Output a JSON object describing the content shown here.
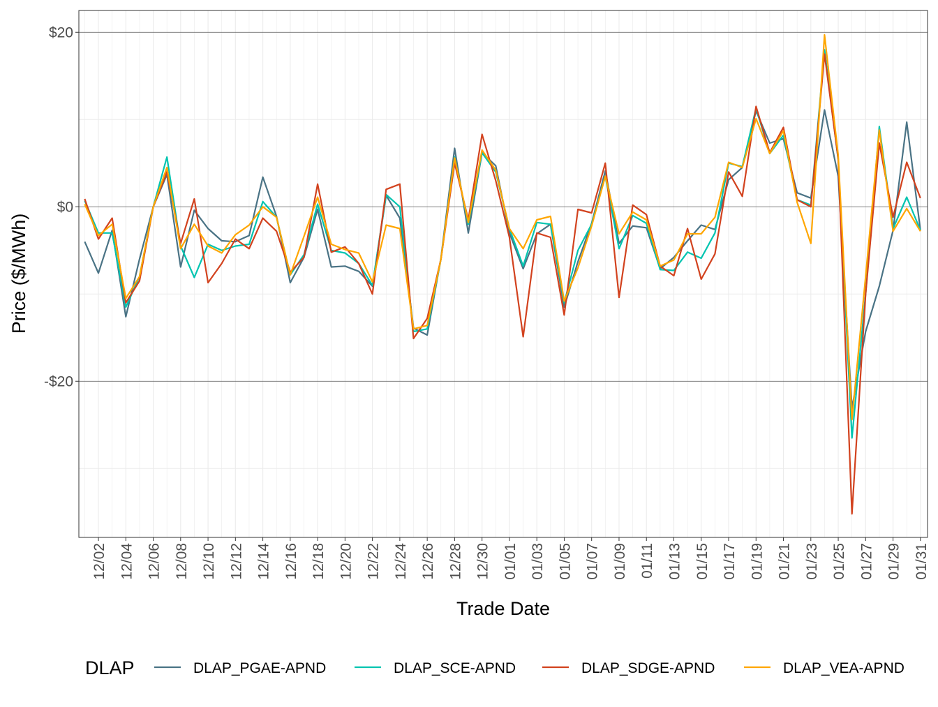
{
  "chart_data": {
    "type": "line",
    "xlabel": "Trade Date",
    "ylabel": "Price ($/MWh)",
    "ylim": [
      -37.9,
      22.5
    ],
    "y_ticks": [
      20,
      0,
      -20
    ],
    "y_tick_labels": [
      "$20",
      "$0",
      "-$20"
    ],
    "grid": true,
    "legend": {
      "title": "DLAP",
      "position": "bottom"
    },
    "x": [
      "12/01",
      "12/02",
      "12/03",
      "12/04",
      "12/05",
      "12/06",
      "12/07",
      "12/08",
      "12/09",
      "12/10",
      "12/11",
      "12/12",
      "12/13",
      "12/14",
      "12/15",
      "12/16",
      "12/17",
      "12/18",
      "12/19",
      "12/20",
      "12/21",
      "12/22",
      "12/23",
      "12/24",
      "12/25",
      "12/26",
      "12/27",
      "12/28",
      "12/29",
      "12/30",
      "12/31",
      "01/01",
      "01/02",
      "01/03",
      "01/04",
      "01/05",
      "01/06",
      "01/07",
      "01/08",
      "01/09",
      "01/10",
      "01/11",
      "01/12",
      "01/13",
      "01/14",
      "01/15",
      "01/16",
      "01/17",
      "01/18",
      "01/19",
      "01/20",
      "01/21",
      "01/22",
      "01/23",
      "01/24",
      "01/25",
      "01/26",
      "01/27",
      "01/28",
      "01/29",
      "01/30",
      "01/31"
    ],
    "x_tick_labels": [
      "12/02",
      "12/04",
      "12/06",
      "12/08",
      "12/10",
      "12/12",
      "12/14",
      "12/16",
      "12/18",
      "12/20",
      "12/22",
      "12/24",
      "12/26",
      "12/28",
      "12/30",
      "01/01",
      "01/03",
      "01/05",
      "01/07",
      "01/09",
      "01/11",
      "01/13",
      "01/15",
      "01/17",
      "01/19",
      "01/21",
      "01/23",
      "01/25",
      "01/27",
      "01/29",
      "01/31"
    ],
    "series": [
      {
        "name": "DLAP_PGAE-APND",
        "color": "#4a7385",
        "values": [
          -4.0,
          -7.6,
          -2.7,
          -12.6,
          -6.0,
          0,
          3.7,
          -6.9,
          -0.4,
          -2.5,
          -3.9,
          -4.0,
          -3.3,
          3.4,
          -1.1,
          -8.7,
          -5.8,
          -0.3,
          -6.9,
          -6.8,
          -7.4,
          -9.1,
          1.3,
          -1.3,
          -13.9,
          -14.7,
          -5.9,
          6.7,
          -3.0,
          6.2,
          4.7,
          -3.0,
          -7.1,
          -3.1,
          -2.0,
          -11.5,
          -6.3,
          -1.9,
          4.1,
          -4.2,
          -2.2,
          -2.4,
          -7.1,
          -5.8,
          -3.9,
          -2.1,
          -2.6,
          3.1,
          4.5,
          11.0,
          7.3,
          7.8,
          1.6,
          1.0,
          11.1,
          3.5,
          -23.1,
          -14.3,
          -9.1,
          -2.7,
          9.7,
          -2.7
        ]
      },
      {
        "name": "DLAP_SCE-APND",
        "color": "#00c4b0",
        "values": [
          0.7,
          -3.0,
          -3.0,
          -11.5,
          -8.0,
          0,
          5.7,
          -4.5,
          -8.1,
          -4.3,
          -5.0,
          -4.5,
          -4.3,
          0.6,
          -1.2,
          -7.8,
          -5.5,
          0.3,
          -5.0,
          -5.3,
          -6.5,
          -9.0,
          1.4,
          0,
          -14.3,
          -14.0,
          -6.0,
          5.7,
          -2.0,
          6.2,
          4.0,
          -2.5,
          -6.8,
          -1.8,
          -2.0,
          -11.0,
          -5.0,
          -2.0,
          3.5,
          -4.8,
          -1.0,
          -1.9,
          -7.2,
          -7.3,
          -5.2,
          -5.9,
          -3.0,
          5.0,
          4.6,
          11.3,
          6.1,
          8.2,
          0.8,
          0.2,
          18.0,
          5.4,
          -26.5,
          -10.0,
          9.2,
          -2.5,
          1.1,
          -2.7
        ]
      },
      {
        "name": "DLAP_SDGE-APND",
        "color": "#d2421e",
        "values": [
          0.9,
          -3.7,
          -1.3,
          -11.0,
          -8.5,
          0,
          4.0,
          -4.2,
          0.9,
          -8.7,
          -6.5,
          -3.7,
          -4.8,
          -1.3,
          -2.8,
          -7.5,
          -5.8,
          2.6,
          -5.2,
          -4.6,
          -6.5,
          -10.0,
          2.0,
          2.6,
          -15.1,
          -12.8,
          -6.0,
          5.0,
          -1.5,
          8.3,
          3.0,
          -3.5,
          -14.9,
          -3.0,
          -3.5,
          -12.4,
          -0.3,
          -0.7,
          5.0,
          -10.4,
          0.2,
          -0.9,
          -6.8,
          -7.9,
          -2.5,
          -8.3,
          -5.4,
          4.0,
          1.2,
          11.5,
          6.2,
          9.1,
          0.8,
          0,
          17.5,
          5.5,
          -35.2,
          -10.0,
          7.3,
          -1.2,
          5.1,
          1.0
        ]
      },
      {
        "name": "DLAP_VEA-APND",
        "color": "#ffa600",
        "values": [
          0.3,
          -3.3,
          -2.0,
          -10.5,
          -8.0,
          0,
          4.5,
          -4.8,
          -2.0,
          -4.5,
          -5.3,
          -3.2,
          -2.1,
          0,
          -1.2,
          -7.8,
          -3.4,
          1.1,
          -4.3,
          -4.9,
          -5.3,
          -8.6,
          -2.1,
          -2.5,
          -14.0,
          -13.6,
          -6.0,
          5.6,
          -1.8,
          6.5,
          4.2,
          -2.5,
          -4.8,
          -1.5,
          -1.1,
          -10.8,
          -7.0,
          -2.2,
          3.5,
          -3.1,
          -0.6,
          -1.5,
          -6.8,
          -6.1,
          -3.1,
          -3.1,
          -1.2,
          5.1,
          4.5,
          10.1,
          6.1,
          8.7,
          0.5,
          -4.2,
          19.7,
          5.9,
          -24.4,
          -8.0,
          8.8,
          -2.8,
          -0.2,
          -2.8
        ]
      }
    ]
  }
}
